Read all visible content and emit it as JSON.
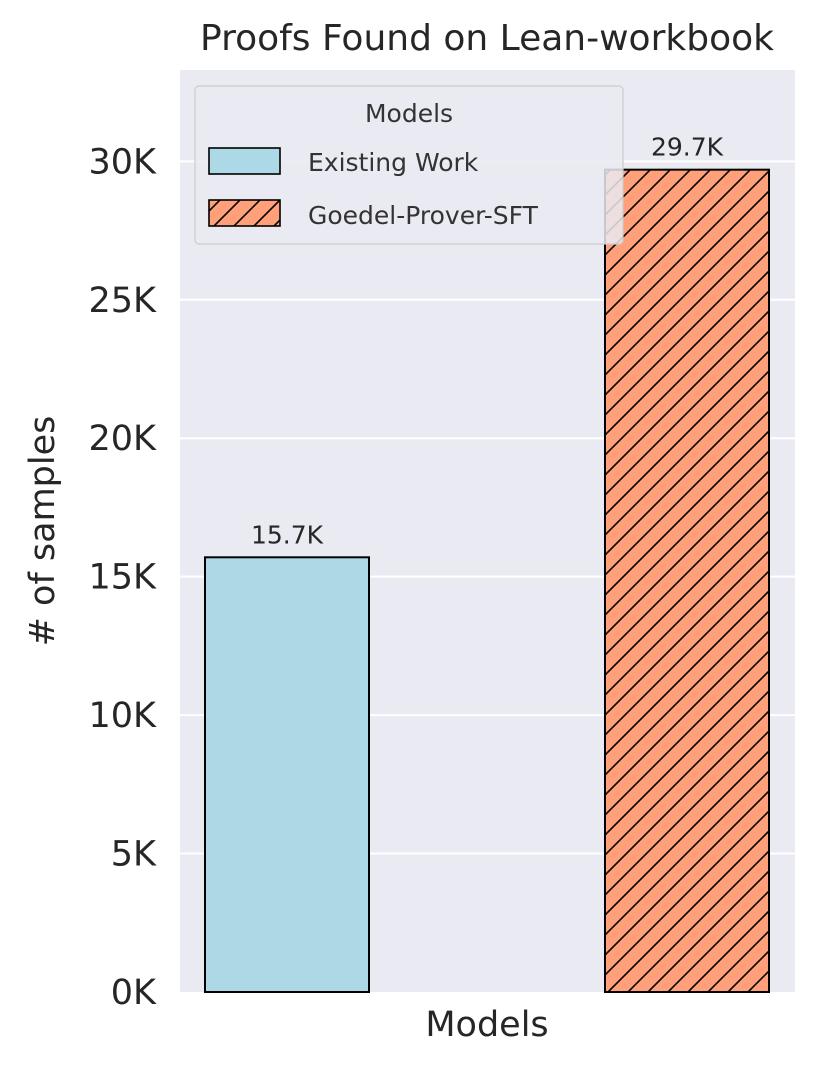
{
  "chart_data": {
    "type": "bar",
    "title": "Proofs Found on Lean-workbook",
    "xlabel": "Models",
    "ylabel": "# of samples",
    "ylim": [
      0,
      33300
    ],
    "yticks": [
      0,
      5000,
      10000,
      15000,
      20000,
      25000,
      30000
    ],
    "ytick_labels": [
      "0K",
      "5K",
      "10K",
      "15K",
      "20K",
      "25K",
      "30K"
    ],
    "grid": true,
    "legend": {
      "title": "Models",
      "placement": "top-left",
      "entries": [
        "Existing Work",
        "Goedel-Prover-SFT"
      ]
    },
    "series": [
      {
        "name": "Existing Work",
        "value": 15700,
        "label": "15.7K",
        "color": "#add8e6",
        "hatch": false
      },
      {
        "name": "Goedel-Prover-SFT",
        "value": 29700,
        "label": "29.7K",
        "color": "#ffa07a",
        "hatch": true
      }
    ],
    "colors": {
      "plot_background": "#eaeaf2",
      "grid": "#ffffff",
      "edge": "#000000"
    }
  }
}
